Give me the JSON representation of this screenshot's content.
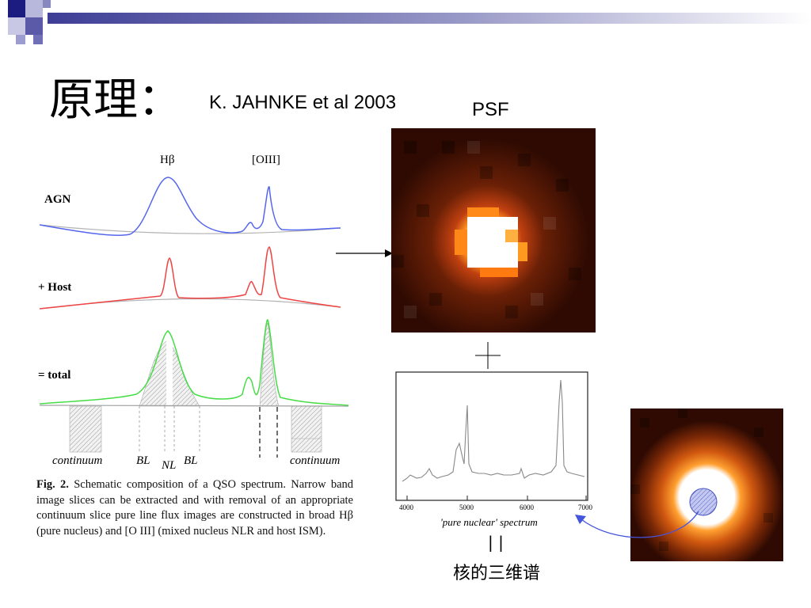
{
  "slide": {
    "title": "原理：",
    "reference": "K. JAHNKE et al 2003",
    "psf_label": "PSF",
    "nucleus_label": "核的三维谱",
    "arrow_bars": "| |"
  },
  "schematic": {
    "line_labels": {
      "hbeta": "Hβ",
      "oiii": "[OIII]"
    },
    "row_labels": {
      "agn": "AGN",
      "host": "+ Host",
      "total": "= total"
    },
    "bottom_labels": {
      "continuum_left": "continuum",
      "bl_left": "BL",
      "nl": "NL",
      "bl_right": "BL",
      "continuum_right": "continuum"
    },
    "colors": {
      "agn": "#5566ee",
      "host": "#ee4444",
      "total": "#44dd44"
    }
  },
  "caption": {
    "label": "Fig. 2.",
    "text": "Schematic composition of a QSO spectrum. Narrow band image slices can be extracted and with removal of an appropriate continuum slice pure line flux images are constructed in broad Hβ (pure nucleus) and [O III] (mixed nucleus NLR and host ISM)."
  },
  "spectrum_plot": {
    "x_ticks": [
      "4000",
      "5000",
      "6000",
      "7000"
    ],
    "xlabel": "'pure nuclear' spectrum"
  }
}
